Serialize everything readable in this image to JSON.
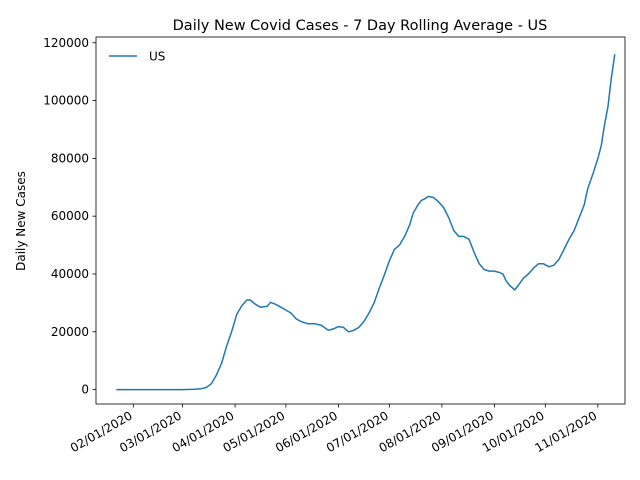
{
  "chart_data": {
    "type": "line",
    "title": "Daily New Covid Cases - 7 Day Rolling Average - US",
    "xlabel": "",
    "ylabel": "Daily New Cases",
    "ylim": [
      -5000,
      122000
    ],
    "yticks": [
      0,
      20000,
      40000,
      60000,
      80000,
      100000,
      120000
    ],
    "xlim": [
      "2020-01-10",
      "2020-11-17"
    ],
    "xticks": [
      "2020-02-01",
      "2020-03-01",
      "2020-04-01",
      "2020-05-01",
      "2020-06-01",
      "2020-07-01",
      "2020-08-01",
      "2020-09-01",
      "2020-10-01",
      "2020-11-01"
    ],
    "xtick_labels": [
      "02/01/2020",
      "03/01/2020",
      "04/01/2020",
      "05/01/2020",
      "06/01/2020",
      "07/01/2020",
      "08/01/2020",
      "09/01/2020",
      "10/01/2020",
      "11/01/2020"
    ],
    "legend": "upper-left",
    "grid": false,
    "series": [
      {
        "name": "US",
        "color": "#1f77b4",
        "points": [
          [
            "2020-01-22",
            0
          ],
          [
            "2020-02-15",
            0
          ],
          [
            "2020-03-01",
            0
          ],
          [
            "2020-03-08",
            100
          ],
          [
            "2020-03-12",
            300
          ],
          [
            "2020-03-15",
            700
          ],
          [
            "2020-03-18",
            2000
          ],
          [
            "2020-03-21",
            5000
          ],
          [
            "2020-03-24",
            9000
          ],
          [
            "2020-03-27",
            15000
          ],
          [
            "2020-03-30",
            20000
          ],
          [
            "2020-04-02",
            26000
          ],
          [
            "2020-04-05",
            29000
          ],
          [
            "2020-04-08",
            31000
          ],
          [
            "2020-04-10",
            31000
          ],
          [
            "2020-04-13",
            29500
          ],
          [
            "2020-04-16",
            28500
          ],
          [
            "2020-04-20",
            28800
          ],
          [
            "2020-04-22",
            30200
          ],
          [
            "2020-04-25",
            29500
          ],
          [
            "2020-04-28",
            28500
          ],
          [
            "2020-05-01",
            27500
          ],
          [
            "2020-05-04",
            26500
          ],
          [
            "2020-05-07",
            24500
          ],
          [
            "2020-05-10",
            23500
          ],
          [
            "2020-05-14",
            22800
          ],
          [
            "2020-05-18",
            22800
          ],
          [
            "2020-05-22",
            22200
          ],
          [
            "2020-05-26",
            20500
          ],
          [
            "2020-05-29",
            21000
          ],
          [
            "2020-06-01",
            21800
          ],
          [
            "2020-06-04",
            21500
          ],
          [
            "2020-06-07",
            20000
          ],
          [
            "2020-06-10",
            20500
          ],
          [
            "2020-06-13",
            21500
          ],
          [
            "2020-06-16",
            23500
          ],
          [
            "2020-06-19",
            26500
          ],
          [
            "2020-06-22",
            30000
          ],
          [
            "2020-06-25",
            35000
          ],
          [
            "2020-06-28",
            39500
          ],
          [
            "2020-07-01",
            44500
          ],
          [
            "2020-07-04",
            48500
          ],
          [
            "2020-07-07",
            50000
          ],
          [
            "2020-07-10",
            53000
          ],
          [
            "2020-07-13",
            57000
          ],
          [
            "2020-07-15",
            61000
          ],
          [
            "2020-07-18",
            64000
          ],
          [
            "2020-07-20",
            65500
          ],
          [
            "2020-07-22",
            66000
          ],
          [
            "2020-07-24",
            66800
          ],
          [
            "2020-07-27",
            66500
          ],
          [
            "2020-07-30",
            65000
          ],
          [
            "2020-08-02",
            63000
          ],
          [
            "2020-08-05",
            59500
          ],
          [
            "2020-08-08",
            55000
          ],
          [
            "2020-08-11",
            53000
          ],
          [
            "2020-08-14",
            53000
          ],
          [
            "2020-08-17",
            52000
          ],
          [
            "2020-08-20",
            47500
          ],
          [
            "2020-08-23",
            43500
          ],
          [
            "2020-08-26",
            41500
          ],
          [
            "2020-08-29",
            41000
          ],
          [
            "2020-09-01",
            41000
          ],
          [
            "2020-09-04",
            40500
          ],
          [
            "2020-09-06",
            40000
          ],
          [
            "2020-09-08",
            37500
          ],
          [
            "2020-09-10",
            36000
          ],
          [
            "2020-09-13",
            34500
          ],
          [
            "2020-09-15",
            36000
          ],
          [
            "2020-09-18",
            38500
          ],
          [
            "2020-09-21",
            40000
          ],
          [
            "2020-09-24",
            42000
          ],
          [
            "2020-09-27",
            43500
          ],
          [
            "2020-09-30",
            43500
          ],
          [
            "2020-10-03",
            42500
          ],
          [
            "2020-10-06",
            43000
          ],
          [
            "2020-10-09",
            45000
          ],
          [
            "2020-10-12",
            48500
          ],
          [
            "2020-10-15",
            52000
          ],
          [
            "2020-10-18",
            55000
          ],
          [
            "2020-10-21",
            59500
          ],
          [
            "2020-10-24",
            64000
          ],
          [
            "2020-10-26",
            69500
          ],
          [
            "2020-10-29",
            74500
          ],
          [
            "2020-11-01",
            80000
          ],
          [
            "2020-11-03",
            84500
          ],
          [
            "2020-11-05",
            92000
          ],
          [
            "2020-11-07",
            98000
          ],
          [
            "2020-11-09",
            108000
          ],
          [
            "2020-11-11",
            116000
          ]
        ]
      }
    ]
  }
}
